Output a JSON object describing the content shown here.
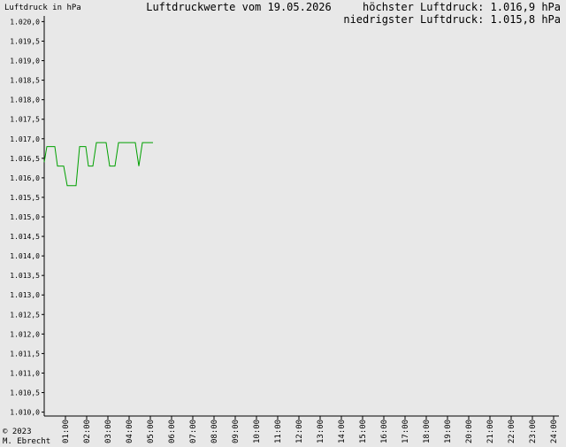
{
  "chart_data": {
    "type": "line",
    "title": "Luftdruckwerte vom 19.05.2026",
    "y_label": "Luftdruck in hPa",
    "annotations": [
      "höchster Luftdruck: 1.016,9 hPa",
      "niedrigster Luftdruck: 1.015,8 hPa"
    ],
    "footer": [
      "© 2023",
      "M. Ebrecht"
    ],
    "x": [
      0,
      0.125,
      0.5,
      0.625,
      0.917,
      1.083,
      1.5,
      1.667,
      1.958,
      2.083,
      2.292,
      2.458,
      2.917,
      3.083,
      3.333,
      3.5,
      4.292,
      4.458,
      4.625,
      5.125
    ],
    "values": [
      1016.4,
      1016.8,
      1016.8,
      1016.3,
      1016.3,
      1015.8,
      1015.8,
      1016.8,
      1016.8,
      1016.3,
      1016.3,
      1016.9,
      1016.9,
      1016.3,
      1016.3,
      1016.9,
      1016.9,
      1016.3,
      1016.9,
      1016.9
    ],
    "color": "#00a000",
    "xlim": [
      0,
      24
    ],
    "xticks": [
      {
        "value": 1,
        "label": "01:00"
      },
      {
        "value": 2,
        "label": "02:00"
      },
      {
        "value": 3,
        "label": "03:00"
      },
      {
        "value": 4,
        "label": "04:00"
      },
      {
        "value": 5,
        "label": "05:00"
      },
      {
        "value": 6,
        "label": "06:00"
      },
      {
        "value": 7,
        "label": "07:00"
      },
      {
        "value": 8,
        "label": "08:00"
      },
      {
        "value": 9,
        "label": "09:00"
      },
      {
        "value": 10,
        "label": "10:00"
      },
      {
        "value": 11,
        "label": "11:00"
      },
      {
        "value": 12,
        "label": "12:00"
      },
      {
        "value": 13,
        "label": "13:00"
      },
      {
        "value": 14,
        "label": "14:00"
      },
      {
        "value": 15,
        "label": "15:00"
      },
      {
        "value": 16,
        "label": "16:00"
      },
      {
        "value": 17,
        "label": "17:00"
      },
      {
        "value": 18,
        "label": "18:00"
      },
      {
        "value": 19,
        "label": "19:00"
      },
      {
        "value": 20,
        "label": "20:00"
      },
      {
        "value": 21,
        "label": "21:00"
      },
      {
        "value": 22,
        "label": "22:00"
      },
      {
        "value": 23,
        "label": "23:00"
      },
      {
        "value": 24,
        "label": "24:00"
      }
    ],
    "ylim": [
      1009.9,
      1020.1
    ],
    "yticks": [
      {
        "value": 1010.0,
        "label": "1.010,0"
      },
      {
        "value": 1010.5,
        "label": "1.010,5"
      },
      {
        "value": 1011.0,
        "label": "1.011,0"
      },
      {
        "value": 1011.5,
        "label": "1.011,5"
      },
      {
        "value": 1012.0,
        "label": "1.012,0"
      },
      {
        "value": 1012.5,
        "label": "1.012,5"
      },
      {
        "value": 1013.0,
        "label": "1.013,0"
      },
      {
        "value": 1013.5,
        "label": "1.013,5"
      },
      {
        "value": 1014.0,
        "label": "1.014,0"
      },
      {
        "value": 1014.5,
        "label": "1.014,5"
      },
      {
        "value": 1015.0,
        "label": "1.015,0"
      },
      {
        "value": 1015.5,
        "label": "1.015,5"
      },
      {
        "value": 1016.0,
        "label": "1.016,0"
      },
      {
        "value": 1016.5,
        "label": "1.016,5"
      },
      {
        "value": 1017.0,
        "label": "1.017,0"
      },
      {
        "value": 1017.5,
        "label": "1.017,5"
      },
      {
        "value": 1018.0,
        "label": "1.018,0"
      },
      {
        "value": 1018.5,
        "label": "1.018,5"
      },
      {
        "value": 1019.0,
        "label": "1.019,0"
      },
      {
        "value": 1019.5,
        "label": "1.019,5"
      },
      {
        "value": 1020.0,
        "label": "1.020,0"
      }
    ],
    "grid": false
  }
}
